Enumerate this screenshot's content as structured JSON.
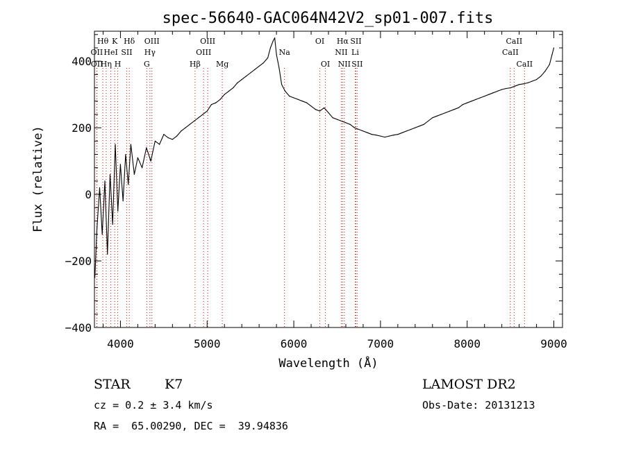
{
  "chart_data": {
    "type": "line",
    "title": "spec-56640-GAC064N42V2_sp01-007.fits",
    "xlabel": "Wavelength (Å)",
    "ylabel": "Flux (relative)",
    "xlim": [
      3700,
      9100
    ],
    "ylim": [
      -400,
      490
    ],
    "x_ticks": [
      4000,
      5000,
      6000,
      7000,
      8000,
      9000
    ],
    "x_tick_labels": [
      "4000",
      "5000",
      "6000",
      "7000",
      "8000",
      "9000"
    ],
    "y_ticks": [
      -400,
      -200,
      0,
      200,
      400
    ],
    "y_tick_labels": [
      "−400",
      "−200",
      "0",
      "200",
      "400"
    ],
    "grid": false,
    "legend": "none",
    "series": [
      {
        "x": [
          3705,
          3730,
          3760,
          3790,
          3820,
          3850,
          3880,
          3910,
          3940,
          3970,
          4000,
          4030,
          4060,
          4090,
          4120,
          4160,
          4200,
          4250,
          4300,
          4350,
          4400,
          4450,
          4500,
          4550,
          4600,
          4650,
          4700,
          4750,
          4800,
          4850,
          4900,
          4950,
          5000,
          5050,
          5100,
          5150,
          5200,
          5250,
          5300,
          5350,
          5400,
          5450,
          5500,
          5550,
          5600,
          5650,
          5700,
          5730,
          5760,
          5780,
          5800,
          5830,
          5860,
          5900,
          5950,
          6000,
          6050,
          6100,
          6150,
          6200,
          6250,
          6300,
          6350,
          6400,
          6450,
          6500,
          6550,
          6600,
          6650,
          6700,
          6750,
          6800,
          6850,
          6900,
          6950,
          7000,
          7050,
          7100,
          7150,
          7200,
          7250,
          7300,
          7350,
          7400,
          7450,
          7500,
          7550,
          7600,
          7650,
          7700,
          7750,
          7800,
          7850,
          7900,
          7950,
          8000,
          8050,
          8100,
          8150,
          8200,
          8250,
          8300,
          8350,
          8400,
          8450,
          8500,
          8550,
          8600,
          8650,
          8700,
          8750,
          8800,
          8850,
          8900,
          8950,
          8980,
          9000
        ],
        "y": [
          -250,
          -100,
          20,
          -120,
          40,
          -180,
          60,
          -90,
          150,
          -50,
          90,
          -20,
          120,
          30,
          150,
          60,
          110,
          80,
          140,
          100,
          160,
          150,
          180,
          170,
          165,
          175,
          190,
          200,
          210,
          220,
          230,
          240,
          250,
          270,
          275,
          285,
          300,
          310,
          320,
          335,
          345,
          355,
          365,
          375,
          385,
          395,
          410,
          440,
          460,
          470,
          420,
          380,
          330,
          310,
          295,
          290,
          285,
          280,
          275,
          265,
          255,
          250,
          260,
          245,
          230,
          225,
          220,
          215,
          210,
          200,
          195,
          190,
          185,
          180,
          178,
          175,
          172,
          175,
          178,
          180,
          185,
          190,
          195,
          200,
          205,
          210,
          220,
          230,
          235,
          240,
          245,
          250,
          255,
          260,
          270,
          275,
          280,
          285,
          290,
          295,
          300,
          305,
          310,
          315,
          318,
          320,
          325,
          330,
          332,
          335,
          340,
          345,
          355,
          370,
          390,
          420,
          440
        ]
      }
    ],
    "line_markers": [
      {
        "label": "Hθ",
        "x": 3797,
        "row": 1
      },
      {
        "label": "OII",
        "x": 3727,
        "row": 2
      },
      {
        "label": "OII",
        "x": 3729,
        "row": 3
      },
      {
        "label": "Hη",
        "x": 3835,
        "row": 3
      },
      {
        "label": "K",
        "x": 3934,
        "row": 1
      },
      {
        "label": "HeI",
        "x": 3889,
        "row": 2
      },
      {
        "label": "H",
        "x": 3969,
        "row": 3
      },
      {
        "label": "SII",
        "x": 4072,
        "row": 2
      },
      {
        "label": "Hδ",
        "x": 4102,
        "row": 1
      },
      {
        "label": "OIII",
        "x": 4363,
        "row": 1
      },
      {
        "label": "Hγ",
        "x": 4340,
        "row": 2
      },
      {
        "label": "G",
        "x": 4304,
        "row": 3
      },
      {
        "label": "Hβ",
        "x": 4861,
        "row": 3
      },
      {
        "label": "OIII",
        "x": 5007,
        "row": 1
      },
      {
        "label": "OIII",
        "x": 4959,
        "row": 2
      },
      {
        "label": "Mg",
        "x": 5175,
        "row": 3
      },
      {
        "label": "Na",
        "x": 5893,
        "row": 2
      },
      {
        "label": "OI",
        "x": 6300,
        "row": 1
      },
      {
        "label": "OI",
        "x": 6364,
        "row": 3
      },
      {
        "label": "Hα",
        "x": 6563,
        "row": 1
      },
      {
        "label": "NII",
        "x": 6548,
        "row": 2
      },
      {
        "label": "NII",
        "x": 6583,
        "row": 3
      },
      {
        "label": "SII",
        "x": 6716,
        "row": 1
      },
      {
        "label": "Li",
        "x": 6708,
        "row": 2
      },
      {
        "label": "SII",
        "x": 6731,
        "row": 3
      },
      {
        "label": "CaII",
        "x": 8542,
        "row": 1
      },
      {
        "label": "CaII",
        "x": 8498,
        "row": 2
      },
      {
        "label": "CaII",
        "x": 8662,
        "row": 3
      }
    ]
  },
  "info": {
    "object_class": "STAR",
    "subclass": "K7",
    "survey": "LAMOST DR2",
    "redshift": "cz = 0.2 ± 3.4 km/s",
    "obs_date": "Obs-Date: 20131213",
    "coords": "RA =  65.00290, DEC =  39.94836"
  },
  "colors": {
    "spectrum": "#000000",
    "marker_line": "#d40000",
    "axis": "#000000"
  }
}
